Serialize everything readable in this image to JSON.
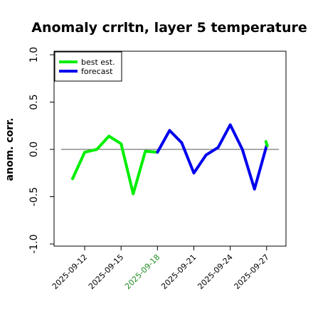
{
  "chart_data": {
    "type": "line",
    "title": "Anomaly crrltn, layer 5 temperature",
    "xlabel": "",
    "ylabel": "anom. corr.",
    "ylim": [
      -1.0,
      1.0
    ],
    "yticks": [
      "-1.0",
      "-0.5",
      "0.0",
      "0.5",
      "1.0"
    ],
    "ytick_values": [
      -1.0,
      -0.5,
      0.0,
      0.5,
      1.0
    ],
    "x": [
      "2025-09-11",
      "2025-09-12",
      "2025-09-13",
      "2025-09-14",
      "2025-09-15",
      "2025-09-16",
      "2025-09-17",
      "2025-09-18",
      "2025-09-19",
      "2025-09-20",
      "2025-09-21",
      "2025-09-22",
      "2025-09-23",
      "2025-09-24",
      "2025-09-25",
      "2025-09-26",
      "2025-09-27"
    ],
    "xticks": [
      "2025-09-12",
      "2025-09-15",
      "2025-09-18",
      "2025-09-21",
      "2025-09-24",
      "2025-09-27"
    ],
    "xtick_colors": [
      "#000000",
      "#000000",
      "#228B22",
      "#000000",
      "#000000",
      "#000000"
    ],
    "reference_line": 0.0,
    "series": [
      {
        "name": "best est.",
        "color": "#00ee00",
        "x": [
          "2025-09-11",
          "2025-09-12",
          "2025-09-13",
          "2025-09-14",
          "2025-09-15",
          "2025-09-16",
          "2025-09-17",
          "2025-09-18"
        ],
        "values": [
          -0.31,
          -0.03,
          0.0,
          0.14,
          0.06,
          -0.47,
          -0.02,
          -0.03
        ]
      },
      {
        "name": "forecast",
        "color": "#0000ee",
        "x": [
          "2025-09-18",
          "2025-09-19",
          "2025-09-20",
          "2025-09-21",
          "2025-09-22",
          "2025-09-23",
          "2025-09-24",
          "2025-09-25",
          "2025-09-26",
          "2025-09-27"
        ],
        "values": [
          -0.03,
          0.2,
          0.07,
          -0.25,
          -0.06,
          0.02,
          0.26,
          0.0,
          -0.42,
          0.04
        ]
      },
      {
        "name": "best est. (end)",
        "color": "#00ee00",
        "x": [
          "2025-09-27"
        ],
        "values": [
          0.06
        ]
      }
    ],
    "legend": {
      "position": "top-left"
    },
    "grid": false
  }
}
